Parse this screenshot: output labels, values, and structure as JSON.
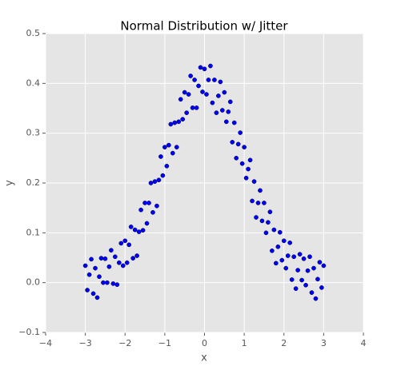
{
  "chart_data": {
    "type": "scatter",
    "title": "Normal Distribution w/ Jitter",
    "x_label": "x",
    "y_label": "y",
    "series": [
      {
        "color": "#0000ff",
        "x": [
          -3.0,
          -2.95,
          -2.9,
          -2.85,
          -2.8,
          -2.75,
          -2.7,
          -2.65,
          -2.6,
          -2.55,
          -2.5,
          -2.45,
          -2.4,
          -2.35,
          -2.3,
          -2.25,
          -2.2,
          -2.15,
          -2.1,
          -2.05,
          -2.0,
          -1.95,
          -1.9,
          -1.85,
          -1.8,
          -1.75,
          -1.7,
          -1.65,
          -1.6,
          -1.55,
          -1.5,
          -1.45,
          -1.4,
          -1.35,
          -1.3,
          -1.25,
          -1.2,
          -1.15,
          -1.1,
          -1.05,
          -1.0,
          -0.95,
          -0.9,
          -0.85,
          -0.8,
          -0.75,
          -0.7,
          -0.65,
          -0.6,
          -0.55,
          -0.5,
          -0.45,
          -0.4,
          -0.35,
          -0.3,
          -0.25,
          -0.2,
          -0.15,
          -0.1,
          -0.05,
          0,
          0.05,
          0.1,
          0.15,
          0.2,
          0.25,
          0.3,
          0.35,
          0.4,
          0.45,
          0.5,
          0.55,
          0.6,
          0.65,
          0.7,
          0.75,
          0.8,
          0.85,
          0.9,
          0.95,
          1.0,
          1.05,
          1.1,
          1.15,
          1.2,
          1.25,
          1.3,
          1.35,
          1.4,
          1.45,
          1.5,
          1.55,
          1.6,
          1.65,
          1.7,
          1.75,
          1.8,
          1.85,
          1.9,
          1.95,
          2.0,
          2.05,
          2.1,
          2.15,
          2.2,
          2.25,
          2.3,
          2.35,
          2.4,
          2.45,
          2.5,
          2.55,
          2.6,
          2.65,
          2.7,
          2.75,
          2.8,
          2.85,
          2.9,
          2.95,
          3.0
        ],
        "values": [
          0.034,
          -0.015,
          0.016,
          0.047,
          -0.022,
          0.029,
          -0.03,
          0.012,
          0.049,
          0.0,
          0.048,
          0.0,
          0.032,
          0.065,
          -0.002,
          0.052,
          -0.004,
          0.04,
          0.079,
          0.034,
          0.084,
          0.04,
          0.076,
          0.112,
          0.049,
          0.106,
          0.054,
          0.102,
          0.146,
          0.105,
          0.16,
          0.119,
          0.16,
          0.2,
          0.141,
          0.203,
          0.154,
          0.206,
          0.253,
          0.215,
          0.272,
          0.234,
          0.276,
          0.318,
          0.26,
          0.321,
          0.272,
          0.323,
          0.368,
          0.328,
          0.382,
          0.341,
          0.378,
          0.415,
          0.351,
          0.407,
          0.351,
          0.395,
          0.432,
          0.383,
          0.429,
          0.378,
          0.407,
          0.435,
          0.361,
          0.407,
          0.341,
          0.375,
          0.403,
          0.346,
          0.382,
          0.323,
          0.343,
          0.363,
          0.282,
          0.321,
          0.25,
          0.278,
          0.301,
          0.239,
          0.272,
          0.21,
          0.228,
          0.246,
          0.164,
          0.203,
          0.131,
          0.16,
          0.185,
          0.124,
          0.16,
          0.1,
          0.121,
          0.142,
          0.064,
          0.106,
          0.039,
          0.072,
          0.101,
          0.045,
          0.084,
          0.029,
          0.054,
          0.08,
          0.006,
          0.052,
          -0.012,
          0.025,
          0.057,
          0.005,
          0.048,
          -0.005,
          0.024,
          0.052,
          -0.02,
          0.029,
          -0.032,
          0.007,
          0.041,
          -0.01,
          0.034
        ]
      }
    ],
    "xlim": [
      -4,
      4
    ],
    "xticks": [
      {
        "value": -4,
        "label": "−4"
      },
      {
        "value": -3,
        "label": "−3"
      },
      {
        "value": -2,
        "label": "−2"
      },
      {
        "value": -1,
        "label": "−1"
      },
      0,
      1,
      2,
      3,
      4
    ],
    "ylim": [
      -0.1,
      0.5
    ],
    "yticks": [
      {
        "value": -0.1,
        "label": "−0.1"
      },
      {
        "value": 0,
        "label": "0.0"
      },
      0.1,
      0.2,
      0.3,
      0.4,
      0.5
    ],
    "grid": true
  }
}
